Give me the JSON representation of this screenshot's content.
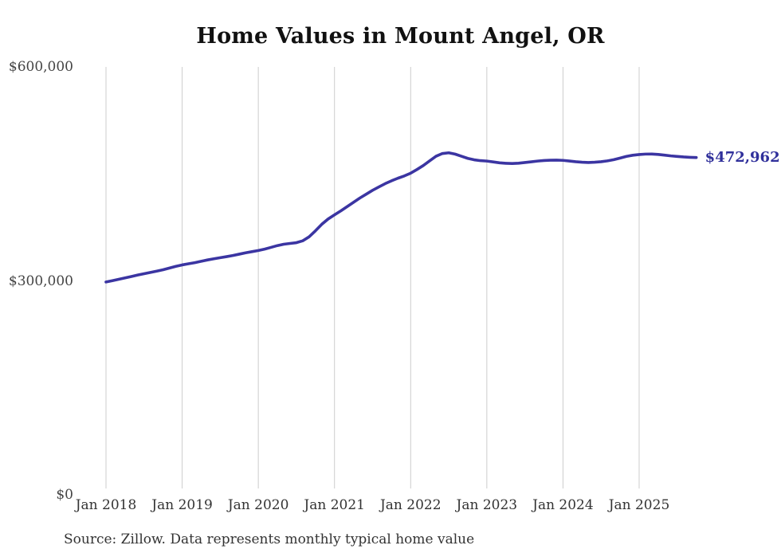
{
  "chart_data": {
    "type": "line",
    "title": "Home Values in Mount Angel, OR",
    "xlabel": "",
    "ylabel": "",
    "ylim": [
      0,
      600000
    ],
    "grid": "vertical-only",
    "x_tick_labels": [
      "Jan 2018",
      "Jan 2019",
      "Jan 2020",
      "Jan 2021",
      "Jan 2022",
      "Jan 2023",
      "Jan 2024",
      "Jan 2025"
    ],
    "y_ticks": [
      {
        "label": "$0",
        "value": 0
      },
      {
        "label": "$300,000",
        "value": 300000
      },
      {
        "label": "$600,000",
        "value": 600000
      }
    ],
    "end_label": "$472,962",
    "end_value": 472962,
    "line_color": "#3b35a2",
    "end_label_color": "#30309b",
    "gridline_color": "#cccccc",
    "series": [
      {
        "name": "Typical home value",
        "start_month": "Jan 2018",
        "frequency": "monthly",
        "values": [
          298500,
          300300,
          302200,
          304200,
          306200,
          308200,
          310100,
          311900,
          313700,
          315600,
          318000,
          320400,
          322400,
          324000,
          325600,
          327500,
          329400,
          331000,
          332500,
          334000,
          335600,
          337500,
          339400,
          341000,
          342600,
          344600,
          347000,
          349500,
          351400,
          352500,
          353600,
          356200,
          361800,
          370200,
          379400,
          386800,
          392600,
          398200,
          404200,
          410200,
          416200,
          421600,
          427000,
          431800,
          436400,
          440400,
          444000,
          447200,
          451000,
          456200,
          461800,
          468400,
          474800,
          478600,
          479600,
          477800,
          474800,
          471800,
          469800,
          468600,
          468000,
          466800,
          465600,
          464900,
          464600,
          465000,
          466000,
          467000,
          468000,
          468800,
          469200,
          469300,
          469000,
          468100,
          467100,
          466400,
          466000,
          466400,
          467100,
          468300,
          470000,
          472200,
          474600,
          476200,
          477200,
          477800,
          477900,
          477300,
          476300,
          475300,
          474500,
          473800,
          473300,
          472962
        ]
      }
    ],
    "source_note": "Source: Zillow. Data represents monthly typical home value"
  }
}
